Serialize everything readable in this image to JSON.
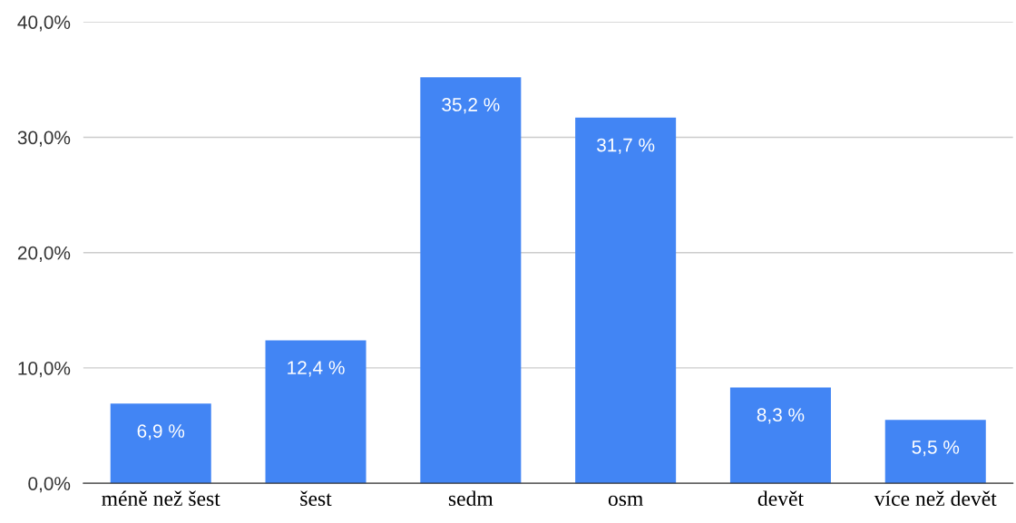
{
  "chart_data": {
    "type": "bar",
    "categories": [
      "méně než šest",
      "šest",
      "sedm",
      "osm",
      "devět",
      "více než devět"
    ],
    "values": [
      6.9,
      12.4,
      35.2,
      31.7,
      8.3,
      5.5
    ],
    "value_labels": [
      "6,9 %",
      "12,4 %",
      "35,2 %",
      "31,7 %",
      "8,3 %",
      "5,5 %"
    ],
    "color": "#4285f4",
    "ylim": [
      0,
      40
    ],
    "yticks": [
      {
        "value": 0,
        "label": "0,0%"
      },
      {
        "value": 10,
        "label": "10,0%"
      },
      {
        "value": 20,
        "label": "20,0%"
      },
      {
        "value": 30,
        "label": "30,0%"
      },
      {
        "value": 40,
        "label": "40,0%"
      }
    ],
    "grid": "y",
    "legend": false
  }
}
